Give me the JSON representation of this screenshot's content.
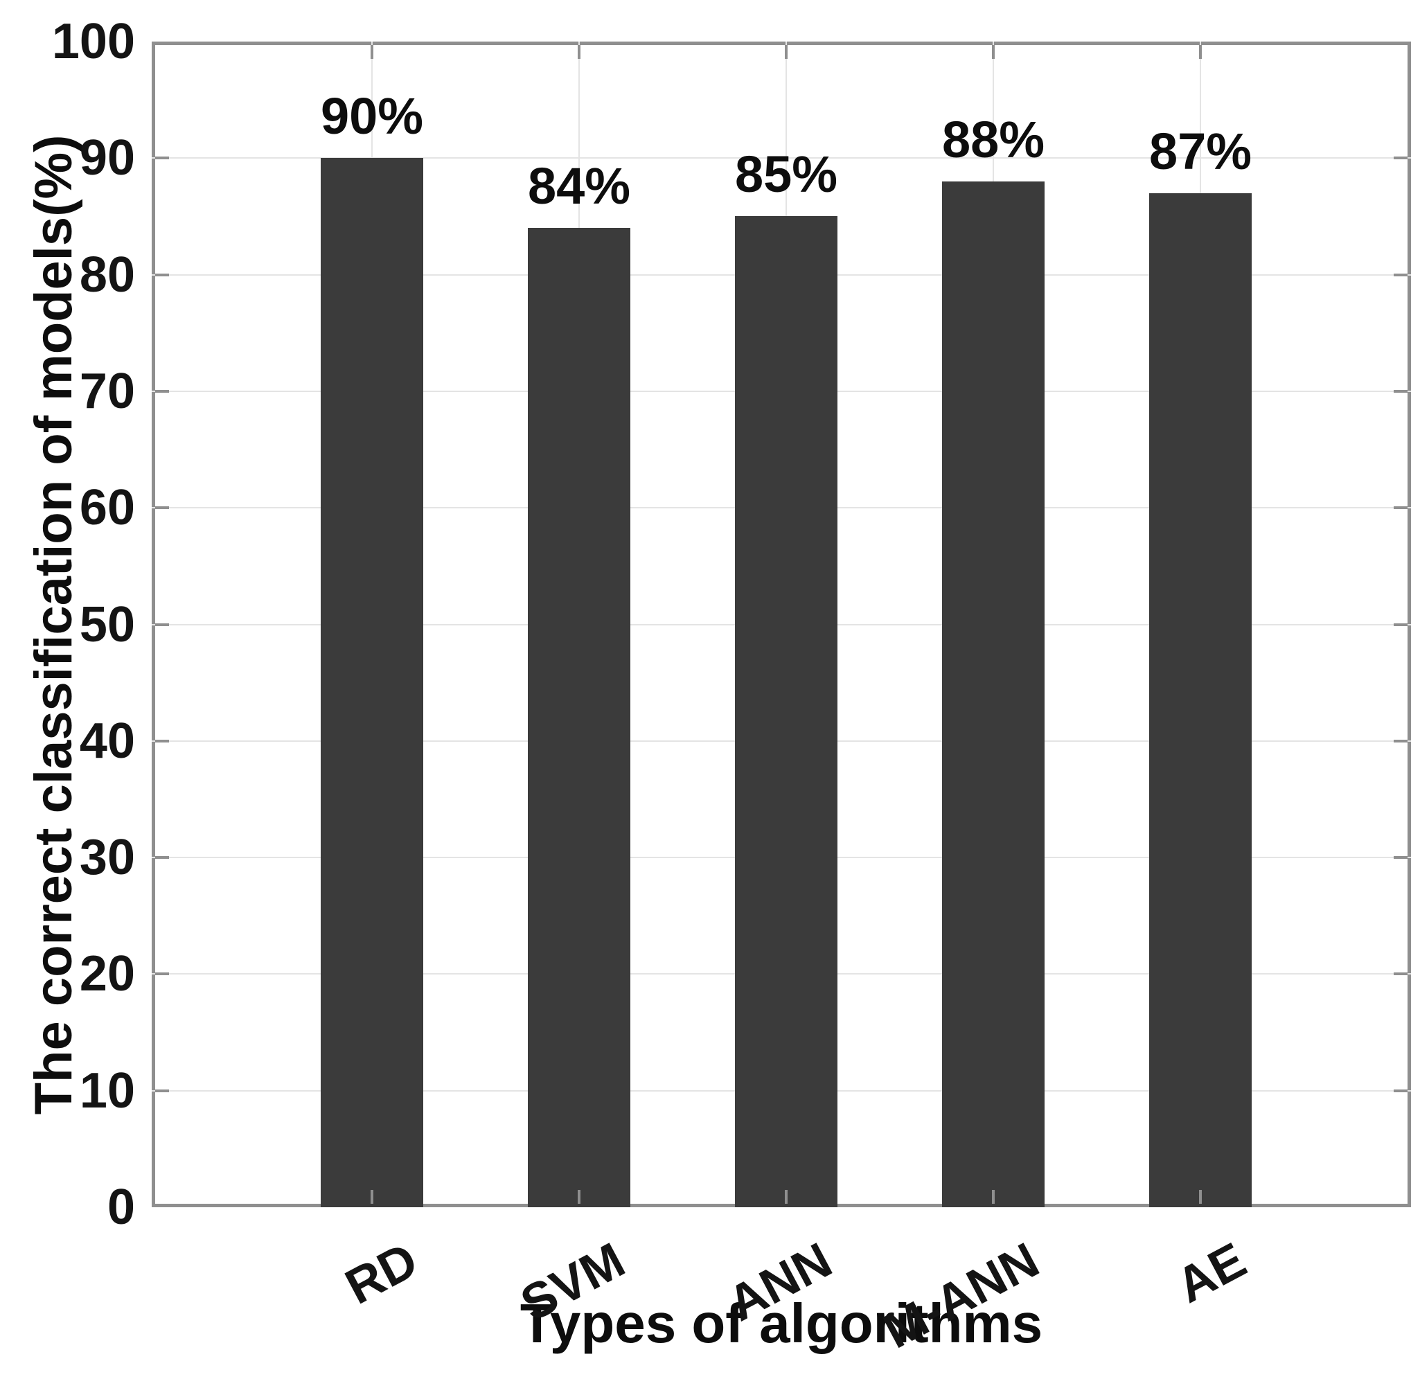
{
  "chart_data": {
    "type": "bar",
    "title": "",
    "categories": [
      "RD",
      "SVM",
      "ANN",
      "M-ANN",
      "AE"
    ],
    "values": [
      90,
      84,
      85,
      88,
      87
    ],
    "bar_labels": [
      "90%",
      "84%",
      "85%",
      "88%",
      "87%"
    ],
    "xlabel": "Types of algorithms",
    "ylabel": "The correct classification of models(%)",
    "ylim": [
      0,
      100
    ],
    "yticks": [
      0,
      10,
      20,
      30,
      40,
      50,
      60,
      70,
      80,
      90,
      100
    ],
    "grid": true,
    "legend_position": "none",
    "xtick_rotation_deg": 28,
    "colors": {
      "bar": "#3b3b3b",
      "axis": "#8f8f8f",
      "grid": "#e4e4e4",
      "text": "#0d0d0d",
      "background": "#ffffff"
    }
  }
}
